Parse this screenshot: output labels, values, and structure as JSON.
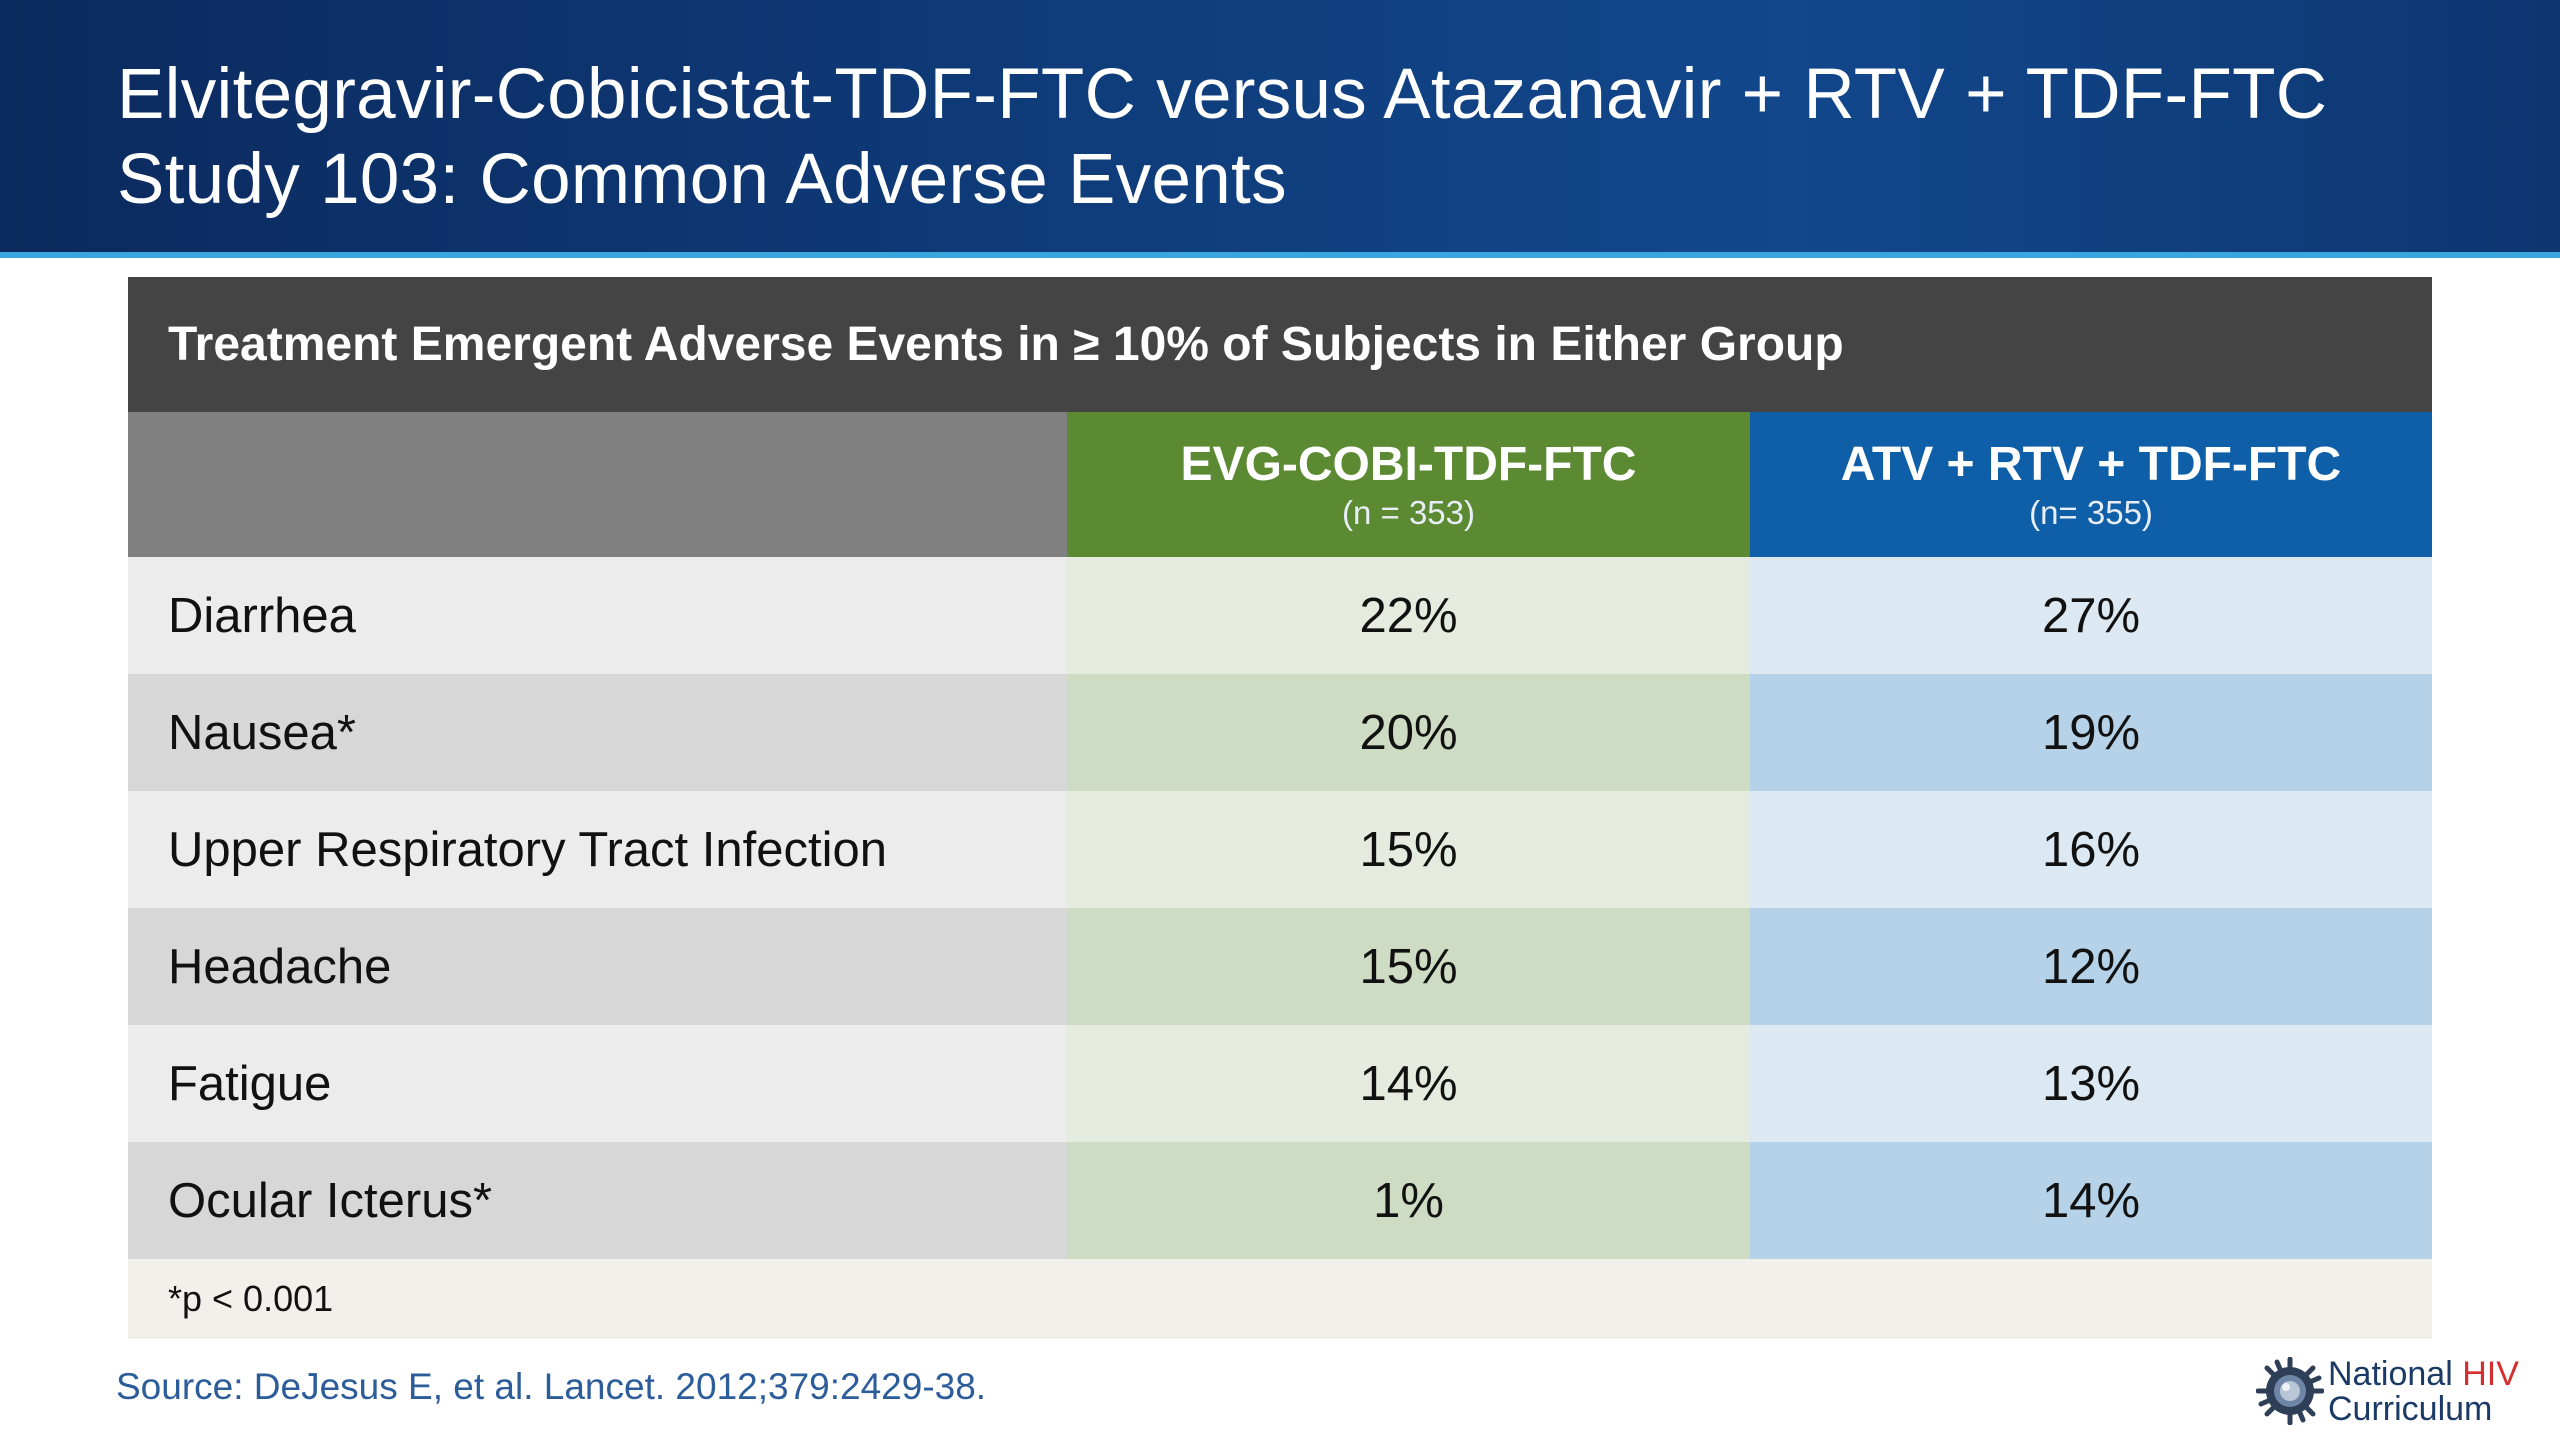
{
  "slide": {
    "title_line1": "Elvitegravir-Cobicistat-TDF-FTC versus Atazanavir + RTV + TDF-FTC",
    "title_line2": "Study 103: Common Adverse Events"
  },
  "table": {
    "title": "Treatment Emergent Adverse Events in ≥ 10% of Subjects in Either Group",
    "columns": [
      {
        "label": "",
        "sublabel": ""
      },
      {
        "label": "EVG-COBI-TDF-FTC",
        "sublabel": "(n = 353)",
        "color": "#5c8a33"
      },
      {
        "label": "ATV + RTV + TDF-FTC",
        "sublabel": "(n= 355)",
        "color": "#0f5fa8"
      }
    ],
    "rows": [
      {
        "event": "Diarrhea",
        "evg": "22%",
        "atv": "27%"
      },
      {
        "event": "Nausea*",
        "evg": "20%",
        "atv": "19%"
      },
      {
        "event": "Upper Respiratory Tract Infection",
        "evg": "15%",
        "atv": "16%"
      },
      {
        "event": "Headache",
        "evg": "15%",
        "atv": "12%"
      },
      {
        "event": "Fatigue",
        "evg": "14%",
        "atv": "13%"
      },
      {
        "event": "Ocular Icterus*",
        "evg": "1%",
        "atv": "14%"
      }
    ],
    "footnote": "*p < 0.001"
  },
  "source": "Source: DeJesus E, et al. Lancet. 2012;379:2429-38.",
  "logo": {
    "line1_a": "National ",
    "line1_b": "HIV",
    "line2": "Curriculum",
    "icon": "gear-globe-icon"
  }
}
